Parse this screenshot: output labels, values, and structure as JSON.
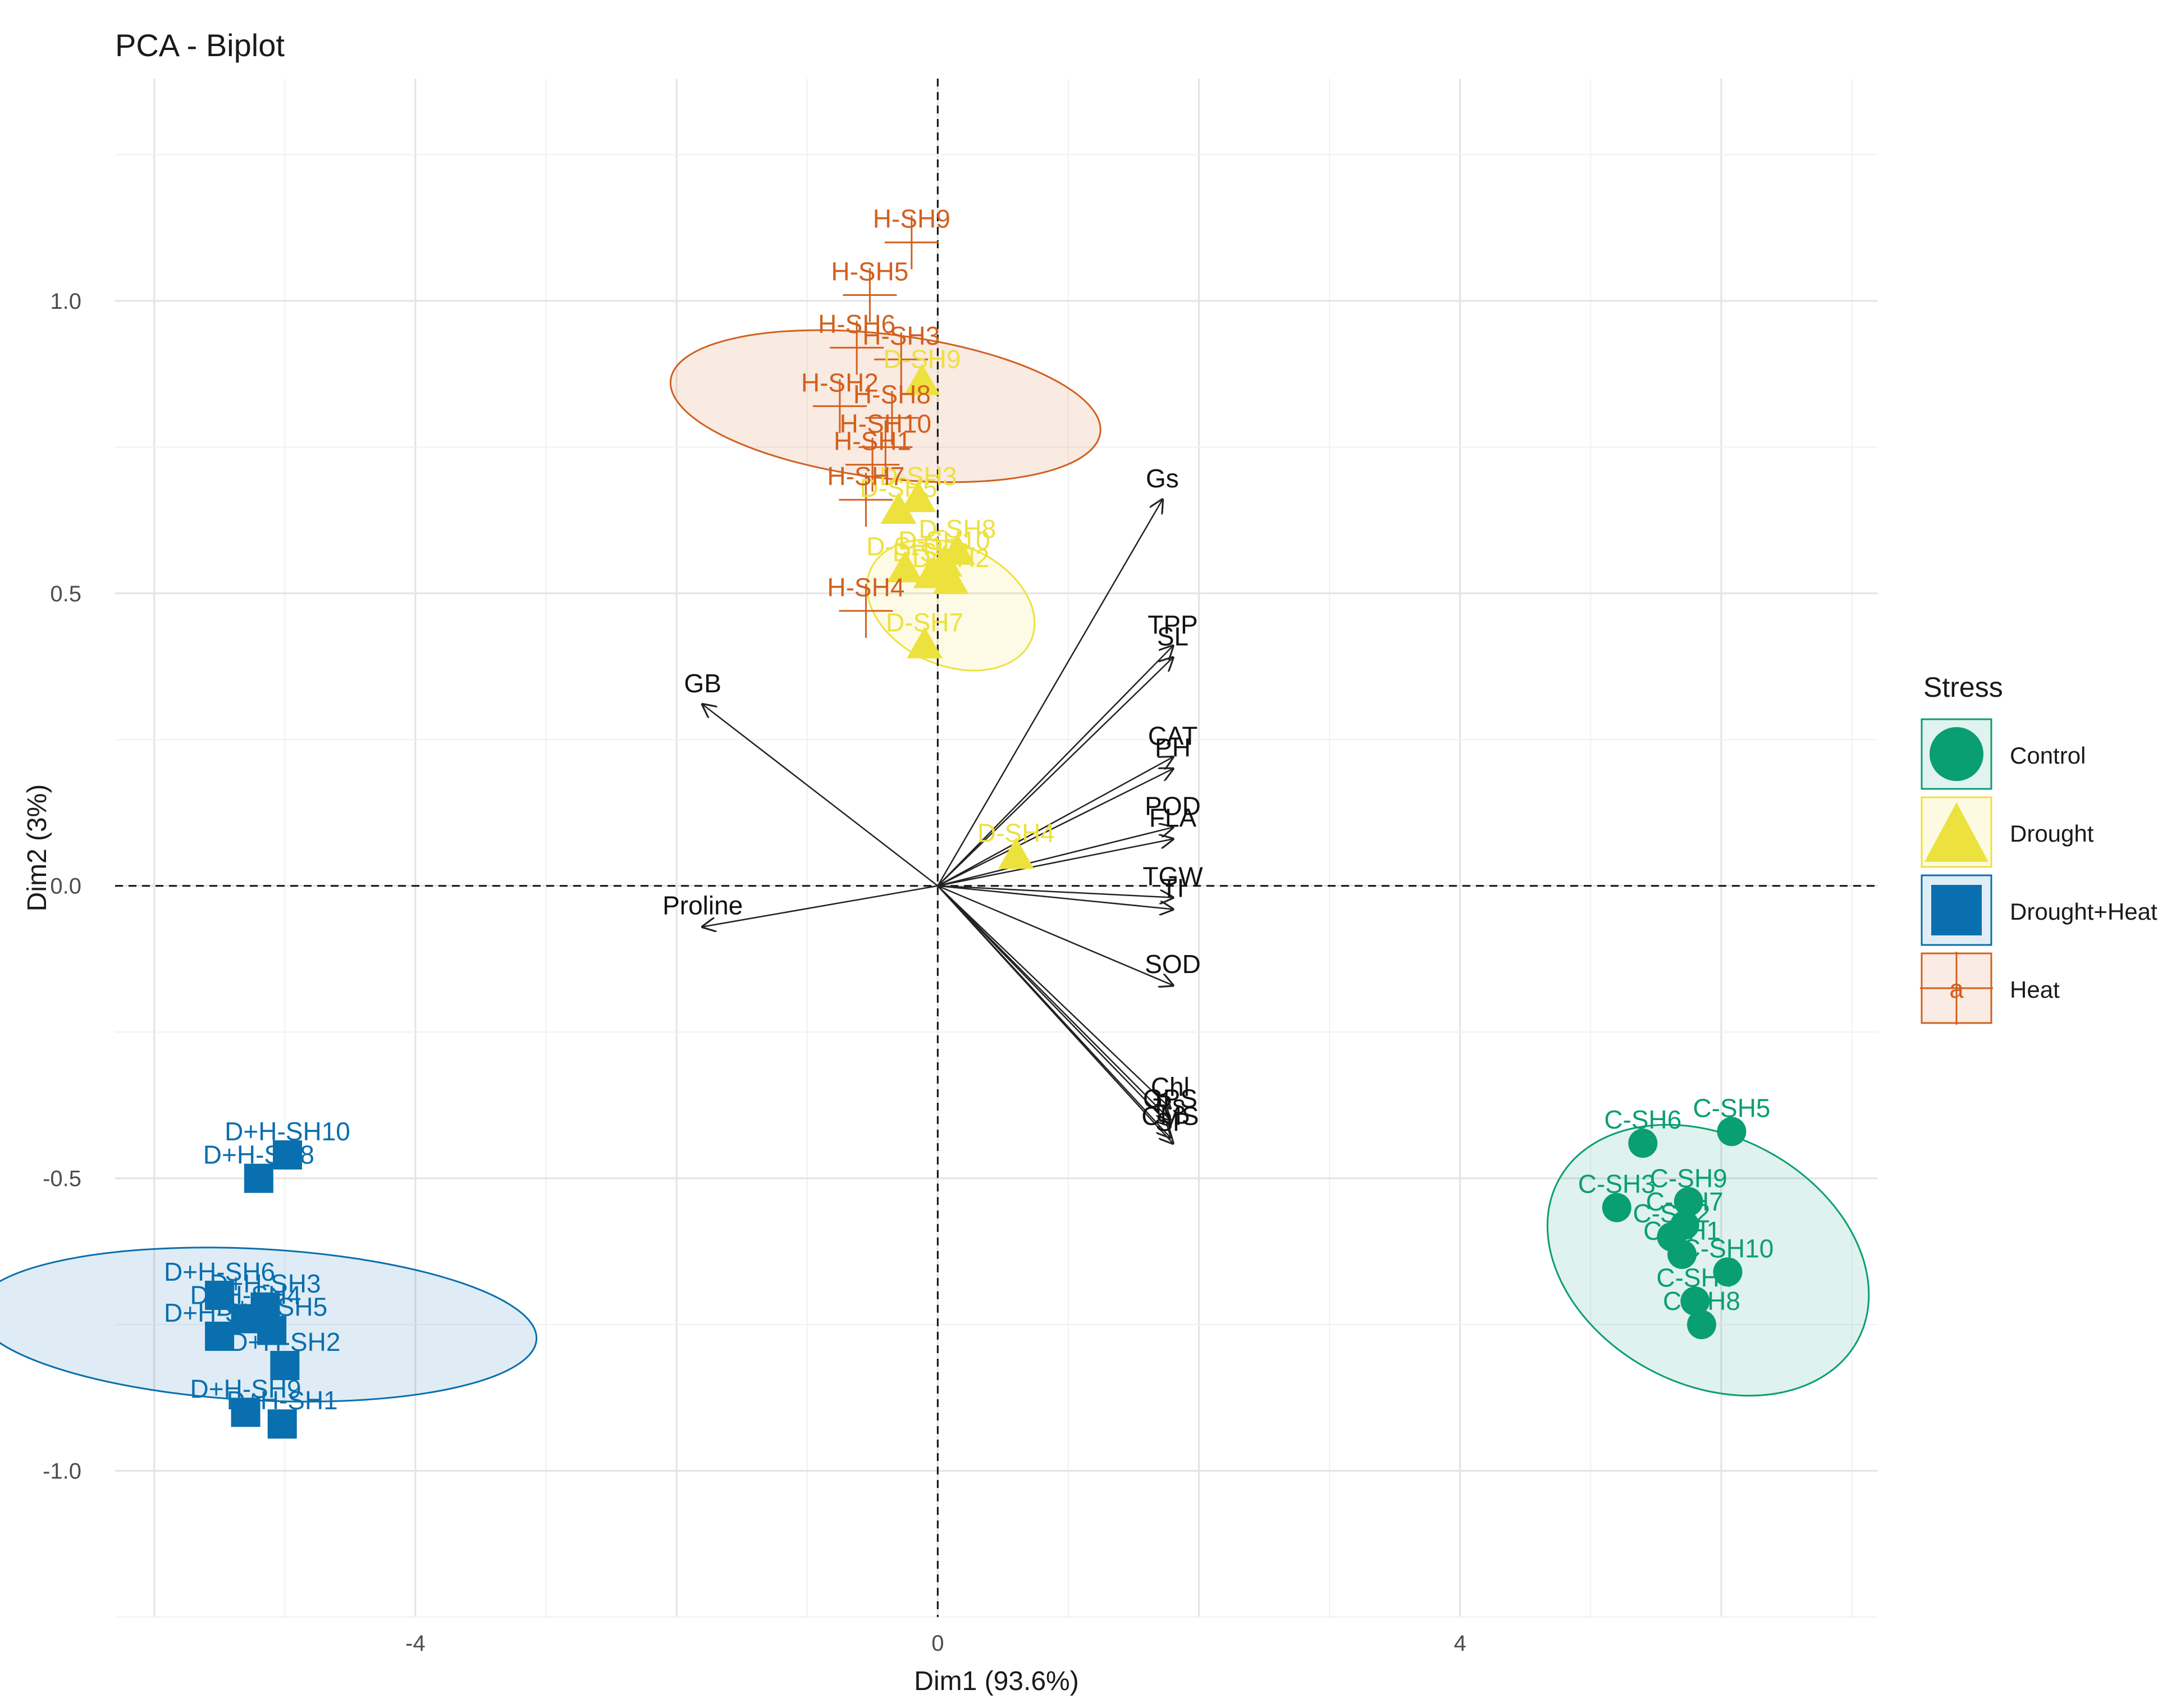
{
  "title": "PCA - Biplot",
  "colors": {
    "Control": "#0a9e73",
    "Drought": "#ede13e",
    "Drought+Heat": "#0a6fae",
    "Heat": "#d2601e"
  },
  "legend": {
    "title": "Stress",
    "items": [
      {
        "label": "Control",
        "shape": "circle"
      },
      {
        "label": "Drought",
        "shape": "triangle"
      },
      {
        "label": "Drought+Heat",
        "shape": "square"
      },
      {
        "label": "Heat",
        "shape": "cross",
        "glyph": "a"
      }
    ]
  },
  "chart_data": {
    "type": "scatter",
    "title": "PCA - Biplot",
    "xlabel": "Dim1 (93.6%)",
    "ylabel": "Dim2 (3%)",
    "xlim": [
      -6.3,
      7.2
    ],
    "ylim": [
      -1.25,
      1.38
    ],
    "xticks": [
      -4,
      0,
      4
    ],
    "xtick_labels": [
      "-4",
      "0",
      "4"
    ],
    "yticks": [
      -1.0,
      -0.5,
      0.0,
      0.5,
      1.0
    ],
    "ytick_labels": [
      "-1.0",
      "-0.5",
      "0.0",
      "0.5",
      "1.0"
    ],
    "grid": true,
    "series": [
      {
        "name": "Control",
        "shape": "circle",
        "ellipse": {
          "cx": 5.9,
          "cy": -0.64,
          "rx": 0.95,
          "ry": 0.29,
          "angle_deg": -62
        },
        "points": [
          {
            "label": "C-SH5",
            "x": 6.08,
            "y": -0.42
          },
          {
            "label": "C-SH6",
            "x": 5.4,
            "y": -0.44
          },
          {
            "label": "C-SH3",
            "x": 5.2,
            "y": -0.55
          },
          {
            "label": "C-SH9",
            "x": 5.75,
            "y": -0.54
          },
          {
            "label": "C-SH7",
            "x": 5.72,
            "y": -0.58
          },
          {
            "label": "C-SH10",
            "x": 6.05,
            "y": -0.66
          },
          {
            "label": "C-SH1",
            "x": 5.7,
            "y": -0.63
          },
          {
            "label": "C-SH2",
            "x": 5.62,
            "y": -0.6
          },
          {
            "label": "C-SH4",
            "x": 5.8,
            "y": -0.71
          },
          {
            "label": "C-SH8",
            "x": 5.85,
            "y": -0.75
          }
        ]
      },
      {
        "name": "Drought",
        "shape": "triangle",
        "ellipse": {
          "cx": 0.1,
          "cy": 0.48,
          "rx": 0.46,
          "ry": 0.15,
          "angle_deg": -66
        },
        "points": [
          {
            "label": "D-SH9",
            "x": -0.12,
            "y": 0.86
          },
          {
            "label": "D-SH3",
            "x": -0.15,
            "y": 0.66
          },
          {
            "label": "D-SH5",
            "x": -0.3,
            "y": 0.64
          },
          {
            "label": "D-SH8",
            "x": 0.15,
            "y": 0.57
          },
          {
            "label": "D-SH10",
            "x": 0.05,
            "y": 0.55
          },
          {
            "label": "D-SH1",
            "x": -0.25,
            "y": 0.54
          },
          {
            "label": "D-SH6",
            "x": -0.05,
            "y": 0.53
          },
          {
            "label": "D-SH2",
            "x": 0.1,
            "y": 0.52
          },
          {
            "label": "D-SH7",
            "x": -0.1,
            "y": 0.41
          },
          {
            "label": "D-SH4",
            "x": 0.6,
            "y": 0.05
          }
        ]
      },
      {
        "name": "Drought+Heat",
        "shape": "square",
        "ellipse": {
          "cx": -5.22,
          "cy": -0.75,
          "rx": 0.58,
          "ry": 0.48,
          "angle_deg": -87
        },
        "points": [
          {
            "label": "D+H-SH10",
            "x": -4.98,
            "y": -0.46
          },
          {
            "label": "D+H-SH8",
            "x": -5.2,
            "y": -0.5
          },
          {
            "label": "D+H-SH6",
            "x": -5.5,
            "y": -0.7
          },
          {
            "label": "D+H-SH3",
            "x": -5.15,
            "y": -0.72
          },
          {
            "label": "D+H-SH4",
            "x": -5.3,
            "y": -0.74
          },
          {
            "label": "D+H-SH5",
            "x": -5.1,
            "y": -0.76
          },
          {
            "label": "D+H-SH7",
            "x": -5.5,
            "y": -0.77
          },
          {
            "label": "D+H-SH2",
            "x": -5.0,
            "y": -0.82
          },
          {
            "label": "D+H-SH9",
            "x": -5.3,
            "y": -0.9
          },
          {
            "label": "D+H-SH1",
            "x": -5.02,
            "y": -0.92
          }
        ]
      },
      {
        "name": "Heat",
        "shape": "cross",
        "ellipse": {
          "cx": -0.4,
          "cy": 0.82,
          "rx": 0.55,
          "ry": 0.37,
          "angle_deg": -83
        },
        "points": [
          {
            "label": "H-SH9",
            "x": -0.2,
            "y": 1.1
          },
          {
            "label": "H-SH5",
            "x": -0.52,
            "y": 1.01
          },
          {
            "label": "H-SH6",
            "x": -0.62,
            "y": 0.92
          },
          {
            "label": "H-SH3",
            "x": -0.28,
            "y": 0.9
          },
          {
            "label": "H-SH2",
            "x": -0.75,
            "y": 0.82
          },
          {
            "label": "H-SH8",
            "x": -0.35,
            "y": 0.8
          },
          {
            "label": "H-SH10",
            "x": -0.4,
            "y": 0.75
          },
          {
            "label": "H-SH1",
            "x": -0.5,
            "y": 0.72
          },
          {
            "label": "H-SH7",
            "x": -0.55,
            "y": 0.66
          },
          {
            "label": "H-SH4",
            "x": -0.55,
            "y": 0.47
          }
        ]
      }
    ],
    "variables": [
      {
        "label": "Gs",
        "x": 1.72,
        "y": 0.66
      },
      {
        "label": "TPP",
        "x": 1.8,
        "y": 0.41
      },
      {
        "label": "SL",
        "x": 1.8,
        "y": 0.39
      },
      {
        "label": "CAT",
        "x": 1.8,
        "y": 0.22
      },
      {
        "label": "PH",
        "x": 1.8,
        "y": 0.2
      },
      {
        "label": "POD",
        "x": 1.8,
        "y": 0.1
      },
      {
        "label": "FLA",
        "x": 1.8,
        "y": 0.08
      },
      {
        "label": "TGW",
        "x": 1.8,
        "y": -0.02
      },
      {
        "label": "TI",
        "x": 1.8,
        "y": -0.04
      },
      {
        "label": "SOD",
        "x": 1.8,
        "y": -0.17
      },
      {
        "label": "Chl",
        "x": 1.78,
        "y": -0.38
      },
      {
        "label": "GPS",
        "x": 1.78,
        "y": -0.4
      },
      {
        "label": "Ps",
        "x": 1.78,
        "y": -0.41
      },
      {
        "label": "CMS",
        "x": 1.78,
        "y": -0.43
      },
      {
        "label": "SP",
        "x": 1.8,
        "y": -0.44
      },
      {
        "label": "GB",
        "x": -1.8,
        "y": 0.31
      },
      {
        "label": "Proline",
        "x": -1.8,
        "y": -0.07
      }
    ]
  }
}
